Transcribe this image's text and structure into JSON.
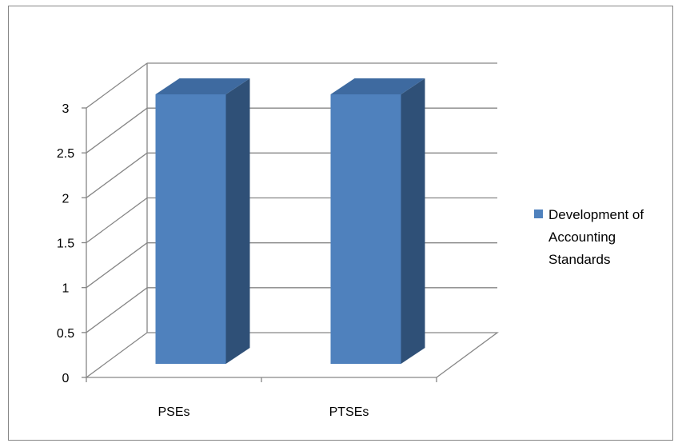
{
  "chart_data": {
    "type": "bar",
    "title": "",
    "xlabel": "",
    "ylabel": "",
    "categories": [
      "PSEs",
      "PTSEs"
    ],
    "series": [
      {
        "name": "Development of Accounting Standards",
        "values": [
          3,
          3
        ]
      }
    ],
    "ylim": [
      0,
      3
    ],
    "yticks": [
      0,
      0.5,
      1,
      1.5,
      2,
      2.5,
      3
    ],
    "ytick_labels": [
      "0",
      "0.5",
      "1",
      "1.5",
      "2",
      "2.5",
      "3"
    ],
    "grid": true,
    "legend_position": "right",
    "three_d": true,
    "colors": {
      "bar_front": "#4F81BD",
      "bar_side": "#2F5077",
      "bar_top": "#3E6AA0",
      "grid": "#868686",
      "axis": "#868686"
    }
  }
}
